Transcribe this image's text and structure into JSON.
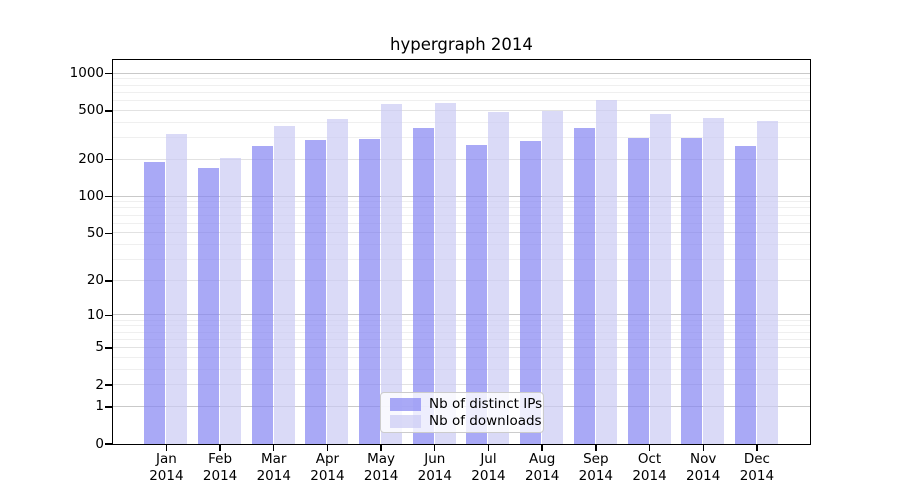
{
  "chart_data": {
    "type": "bar",
    "title": "hypergraph 2014",
    "xlabel": "",
    "ylabel": "",
    "categories": [
      "Jan",
      "Feb",
      "Mar",
      "Apr",
      "May",
      "Jun",
      "Jul",
      "Aug",
      "Sep",
      "Oct",
      "Nov",
      "Dec"
    ],
    "year_label": "2014",
    "series": [
      {
        "name": "Nb of distinct IPs",
        "color": "#8484f2",
        "opacity": 0.7,
        "values": [
          190,
          170,
          255,
          285,
          290,
          360,
          260,
          280,
          358,
          300,
          298,
          255
        ]
      },
      {
        "name": "Nb of downloads",
        "color": "#cacaf3",
        "opacity": 0.7,
        "values": [
          320,
          205,
          375,
          425,
          560,
          575,
          485,
          490,
          605,
          470,
          430,
          410
        ]
      }
    ],
    "yticks": [
      0,
      1,
      2,
      5,
      10,
      20,
      50,
      100,
      200,
      500,
      1000
    ],
    "scale": "log1p",
    "ylim": [
      0,
      1300
    ],
    "grid": true,
    "legend_position": "lower-center",
    "grid_colors": {
      "decade": "#c9c9c9",
      "labeled_minor": "#e2e2e2",
      "minor": "#efefef"
    }
  }
}
